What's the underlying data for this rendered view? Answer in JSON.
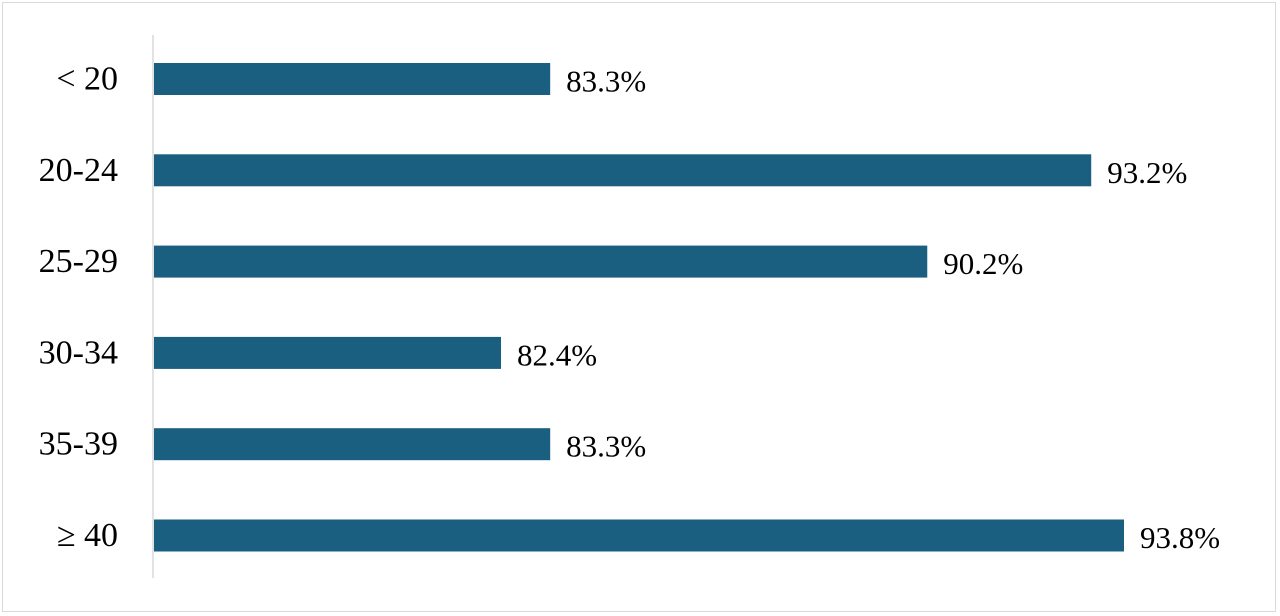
{
  "chart_data": {
    "type": "bar",
    "orientation": "horizontal",
    "title": "",
    "xlabel": "",
    "ylabel": "",
    "categories": [
      "< 20",
      "20-24",
      "25-29",
      "30-34",
      "35-39",
      "≥ 40"
    ],
    "values": [
      83.3,
      93.2,
      90.2,
      82.4,
      83.3,
      93.8
    ],
    "value_labels": [
      "83.3%",
      "93.2%",
      "90.2%",
      "82.4%",
      "83.3%",
      "93.8%"
    ],
    "bar_color": "#1a5f80",
    "grid": false,
    "legend": "none"
  }
}
